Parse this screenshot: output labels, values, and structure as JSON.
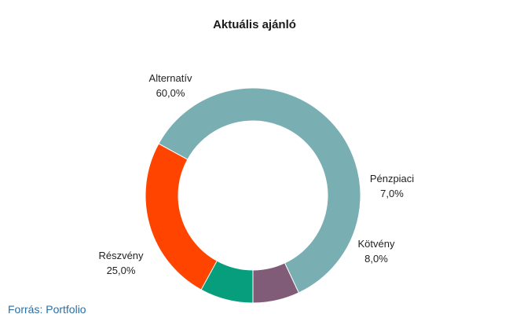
{
  "chart_data": {
    "type": "pie",
    "title": "Aktuális ajánló",
    "donut": true,
    "categories": [
      "Alternatív",
      "Pénzpiaci",
      "Kötvény",
      "Részvény"
    ],
    "values": [
      60.0,
      7.0,
      8.0,
      25.0
    ],
    "value_labels": [
      "60,0%",
      "7,0%",
      "8,0%",
      "25,0%"
    ],
    "colors": [
      "#79afb2",
      "#805c79",
      "#079e7e",
      "#ff4400"
    ],
    "legend": "none"
  },
  "source": "Forrás: Portfolio"
}
